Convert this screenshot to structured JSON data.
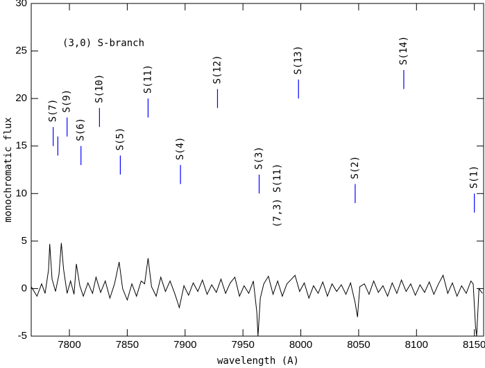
{
  "chart_data": {
    "type": "line",
    "xlabel": "wavelength (A)",
    "ylabel": "monochromatic flux",
    "xlim": [
      7767,
      8158
    ],
    "ylim": [
      -5,
      30
    ],
    "xticks": [
      7800,
      7850,
      7900,
      7950,
      8000,
      8050,
      8100,
      8150
    ],
    "yticks": [
      -5,
      0,
      5,
      10,
      15,
      20,
      25,
      30
    ],
    "color": "#000000",
    "x": [
      7767,
      7772,
      7776,
      7779,
      7782,
      7783,
      7785,
      7788,
      7791,
      7793,
      7795,
      7798,
      7801,
      7804,
      7806,
      7809,
      7812,
      7816,
      7820,
      7823,
      7827,
      7831,
      7835,
      7839,
      7843,
      7846,
      7850,
      7854,
      7858,
      7862,
      7865,
      7868,
      7871,
      7875,
      7879,
      7883,
      7887,
      7891,
      7895,
      7899,
      7903,
      7907,
      7911,
      7915,
      7919,
      7923,
      7927,
      7931,
      7935,
      7939,
      7943,
      7947,
      7951,
      7955,
      7959,
      7962,
      7963,
      7965,
      7968,
      7972,
      7976,
      7980,
      7984,
      7988,
      7992,
      7995,
      7999,
      8003,
      8007,
      8011,
      8015,
      8019,
      8023,
      8027,
      8031,
      8035,
      8039,
      8043,
      8047,
      8049,
      8051,
      8055,
      8059,
      8063,
      8067,
      8071,
      8075,
      8079,
      8083,
      8087,
      8091,
      8095,
      8099,
      8103,
      8107,
      8111,
      8115,
      8119,
      8123,
      8127,
      8131,
      8135,
      8139,
      8143,
      8147,
      8149,
      8151,
      8152,
      8154,
      8157
    ],
    "y": [
      0.2,
      -0.8,
      0.5,
      -0.5,
      2.0,
      4.7,
      1.0,
      -0.3,
      1.5,
      4.8,
      2.0,
      -0.5,
      0.8,
      -0.6,
      2.6,
      0.3,
      -0.8,
      0.6,
      -0.5,
      1.2,
      -0.4,
      0.8,
      -1.0,
      0.5,
      2.8,
      0.0,
      -1.2,
      0.5,
      -0.8,
      0.8,
      0.5,
      3.2,
      0.2,
      -0.8,
      1.2,
      -0.3,
      0.8,
      -0.5,
      -2.0,
      0.3,
      -0.7,
      0.6,
      -0.3,
      0.9,
      -0.6,
      0.4,
      -0.4,
      1.0,
      -0.5,
      0.6,
      1.2,
      -0.8,
      0.3,
      -0.5,
      0.8,
      -2.5,
      -5.0,
      -1.0,
      0.5,
      1.3,
      -0.6,
      0.8,
      -0.8,
      0.5,
      1.0,
      1.4,
      -0.3,
      0.6,
      -1.0,
      0.3,
      -0.5,
      0.7,
      -0.8,
      0.5,
      -0.3,
      0.4,
      -0.6,
      0.6,
      -1.5,
      -3.0,
      0.2,
      0.5,
      -0.6,
      0.8,
      -0.4,
      0.3,
      -0.8,
      0.6,
      -0.5,
      0.9,
      -0.3,
      0.5,
      -0.7,
      0.4,
      -0.4,
      0.7,
      -0.6,
      0.5,
      1.4,
      -0.5,
      0.6,
      -0.8,
      0.3,
      -0.5,
      0.8,
      0.5,
      -4.0,
      -5.0,
      0.0,
      -0.5
    ],
    "branch_label": {
      "text": "(3,0) S-branch",
      "x": 7794,
      "y": 25.8,
      "color": "#0000ff"
    },
    "markers": [
      {
        "text": "S(7)",
        "x": 7786,
        "y": [
          15,
          17
        ],
        "color": "#0000ff"
      },
      {
        "x": 7790,
        "y": [
          14,
          16
        ],
        "color": "#0000ff"
      },
      {
        "text": "S(9)",
        "x": 7798,
        "y": [
          16,
          18
        ],
        "color": "#0000ff"
      },
      {
        "text": "S(6)",
        "x": 7810,
        "y": [
          13,
          15
        ],
        "color": "#0000ff"
      },
      {
        "text": "S(10)",
        "x": 7826,
        "y": [
          17,
          19
        ],
        "color": "#0000ff"
      },
      {
        "text": "S(5)",
        "x": 7844,
        "y": [
          12,
          14
        ],
        "color": "#0000ff"
      },
      {
        "text": "S(11)",
        "x": 7868,
        "y": [
          18,
          20
        ],
        "color": "#0000ff"
      },
      {
        "text": "S(4)",
        "x": 7896,
        "y": [
          11,
          13
        ],
        "color": "#0000ff"
      },
      {
        "text": "S(12)",
        "x": 7928,
        "y": [
          19,
          21
        ],
        "color": "#0000ff"
      },
      {
        "text": "S(3)",
        "x": 7964,
        "y": [
          10,
          12
        ],
        "color": "#0000ff"
      },
      {
        "text": "S(13)",
        "x": 7998,
        "y": [
          20,
          22
        ],
        "color": "#0000ff"
      },
      {
        "text": "S(2)",
        "x": 8047,
        "y": [
          9,
          11
        ],
        "color": "#0000ff"
      },
      {
        "text": "S(14)",
        "x": 8089,
        "y": [
          21,
          23
        ],
        "color": "#0000ff"
      },
      {
        "text": "S(1)",
        "x": 8150,
        "y": [
          8,
          10
        ],
        "color": "#0000ff"
      }
    ],
    "red_label": {
      "text": "(7,3) S(11)",
      "x": 7980,
      "y": 9.8,
      "color": "#ff0000"
    }
  }
}
